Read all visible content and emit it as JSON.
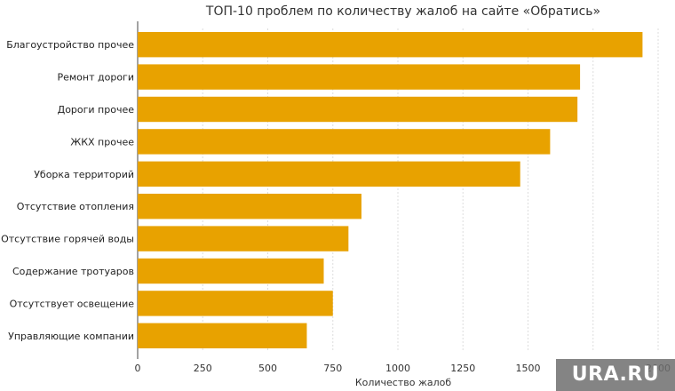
{
  "chart_data": {
    "type": "bar",
    "orientation": "horizontal",
    "title": "ТОП-10 проблем по количеству жалоб на сайте «Обратись»",
    "xlabel": "Количество жалоб",
    "ylabel": "",
    "categories": [
      "Благоустройство прочее",
      "Ремонт дороги",
      "Дороги прочее",
      "ЖКХ прочее",
      "Уборка территорий",
      "Отсутствие отопления",
      "Отсутствие горячей воды",
      "Содержание тротуаров",
      "Отсутствует освещение",
      "Управляющие компании"
    ],
    "values": [
      1940,
      1700,
      1690,
      1585,
      1470,
      860,
      810,
      715,
      750,
      650
    ],
    "xlim": [
      0,
      2000
    ],
    "xticks": [
      0,
      250,
      500,
      750,
      1000,
      1250,
      1500,
      1750,
      2000
    ],
    "xtick_labels": [
      "0",
      "250",
      "500",
      "750",
      "1000",
      "1250",
      "1500",
      "",
      "2000"
    ],
    "grid": true,
    "bar_color": "#e8a200",
    "watermark": "URA.RU"
  }
}
